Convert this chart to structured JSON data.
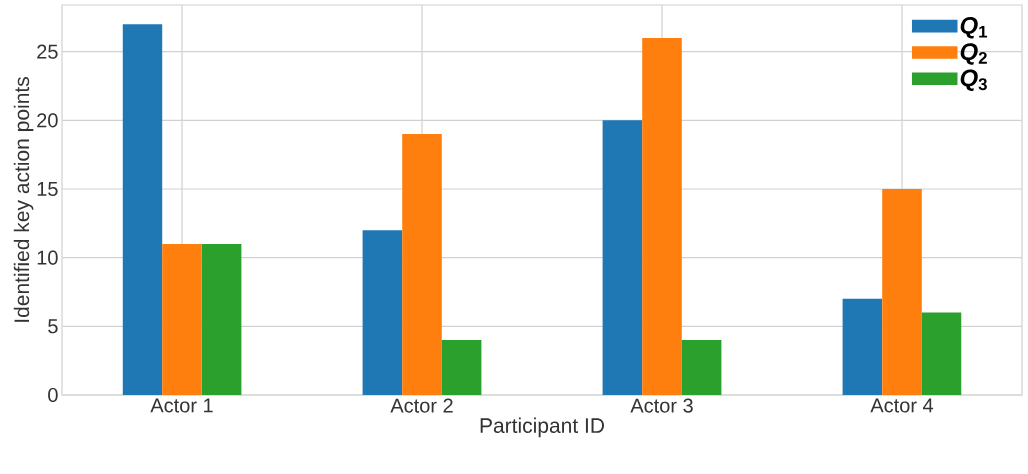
{
  "chart_data": {
    "type": "bar",
    "xlabel": "Participant ID",
    "ylabel": "Identified key action points",
    "categories": [
      "Actor 1",
      "Actor 2",
      "Actor 3",
      "Actor 4"
    ],
    "series": [
      {
        "name": "*Q*$_{1}$",
        "color": "#1f77b4",
        "values": [
          27,
          12,
          20,
          7
        ]
      },
      {
        "name": "*Q*$_{2}$",
        "color": "#ff7f0e",
        "values": [
          11,
          19,
          26,
          15
        ]
      },
      {
        "name": "*Q*$_{3}$",
        "color": "#2ca02c",
        "values": [
          11,
          4,
          4,
          6
        ]
      }
    ],
    "ylim": [
      0,
      28.4
    ],
    "yticks": [
      0,
      5,
      10,
      15,
      20,
      25
    ],
    "grid": true,
    "legend": "top right"
  }
}
